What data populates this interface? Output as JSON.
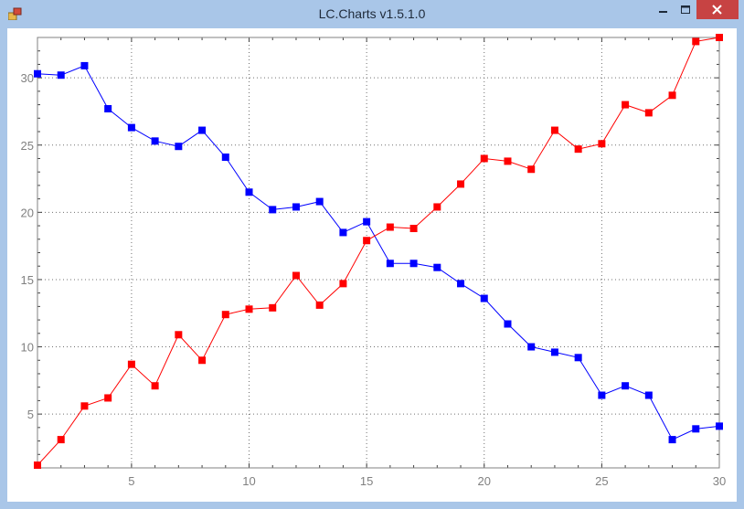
{
  "window": {
    "title": "LC.Charts v1.5.1.0",
    "controls": [
      "minimize",
      "maximize",
      "close"
    ]
  },
  "chart_data": {
    "type": "line",
    "title": "",
    "xlabel": "",
    "ylabel": "",
    "xlim": [
      1,
      30
    ],
    "ylim": [
      1,
      33
    ],
    "grid": true,
    "x_ticks": [
      5,
      10,
      15,
      20,
      25,
      30
    ],
    "y_ticks": [
      5,
      10,
      15,
      20,
      25,
      30
    ],
    "x": [
      1,
      2,
      3,
      4,
      5,
      6,
      7,
      8,
      9,
      10,
      11,
      12,
      13,
      14,
      15,
      16,
      17,
      18,
      19,
      20,
      21,
      22,
      23,
      24,
      25,
      26,
      27,
      28,
      29,
      30
    ],
    "series": [
      {
        "color": "#0000ff",
        "marker": "square",
        "values": [
          30.3,
          30.2,
          30.9,
          27.7,
          26.3,
          25.3,
          24.9,
          26.1,
          24.1,
          21.5,
          20.2,
          20.4,
          20.8,
          18.5,
          19.3,
          16.2,
          16.2,
          15.9,
          14.7,
          13.6,
          11.7,
          10.0,
          9.6,
          9.2,
          6.4,
          7.1,
          6.4,
          3.1,
          3.9,
          4.1
        ]
      },
      {
        "color": "#ff0000",
        "marker": "square",
        "values": [
          1.2,
          3.1,
          5.6,
          6.2,
          8.7,
          7.1,
          10.9,
          9.0,
          12.4,
          12.8,
          12.9,
          15.3,
          13.1,
          14.7,
          17.9,
          18.9,
          18.8,
          20.4,
          22.1,
          24.0,
          23.8,
          23.2,
          26.1,
          24.7,
          25.1,
          28.0,
          27.4,
          28.7,
          32.7,
          33.0
        ]
      }
    ]
  }
}
